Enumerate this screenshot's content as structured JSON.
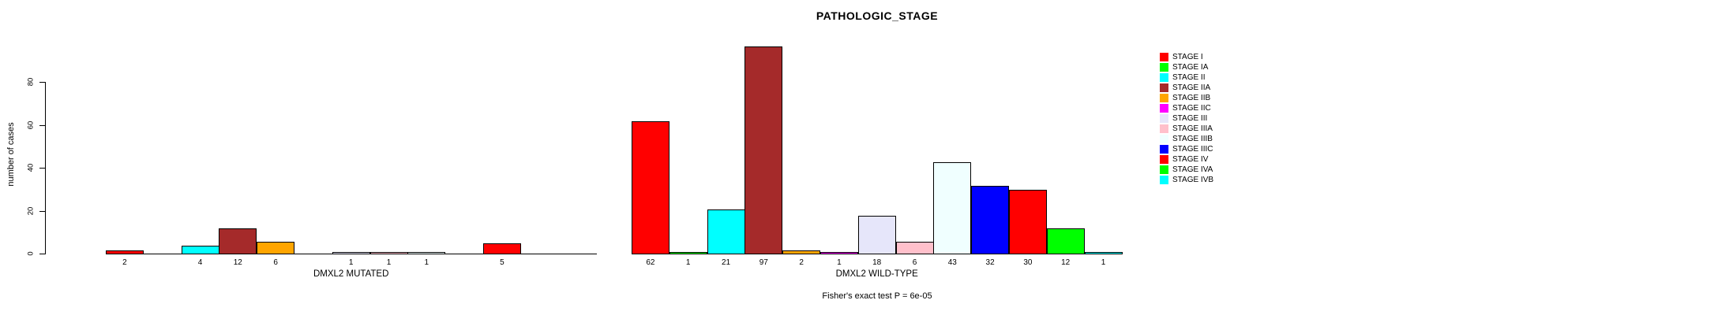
{
  "title": "PATHOLOGIC_STAGE",
  "footer": "Fisher's exact test P = 6e-05",
  "chart_data": {
    "type": "bar",
    "title": "PATHOLOGIC_STAGE",
    "ylabel": "number of cases",
    "yticks": [
      0,
      20,
      40,
      60,
      80
    ],
    "ylim": [
      0,
      80
    ],
    "grid": false,
    "legend_position": "right",
    "categories": [
      "STAGE I",
      "STAGE IA",
      "STAGE II",
      "STAGE IIA",
      "STAGE IIB",
      "STAGE IIC",
      "STAGE III",
      "STAGE IIIA",
      "STAGE IIIB",
      "STAGE IIIC",
      "STAGE IV",
      "STAGE IVA",
      "STAGE IVB"
    ],
    "colors": [
      "#FF0000",
      "#00FF00",
      "#00FFFF",
      "#A52A2A",
      "#FFA500",
      "#FF00FF",
      "#E6E6FA",
      "#FFC0CB",
      "#F0FFFF",
      "#0000FF",
      "#FF0000",
      "#00FF00",
      "#00FFFF"
    ],
    "series": [
      {
        "name": "DMXL2 MUTATED",
        "values": [
          2,
          0,
          4,
          12,
          6,
          0,
          1,
          1,
          1,
          0,
          5,
          0,
          0
        ]
      },
      {
        "name": "DMXL2 WILD-TYPE",
        "values": [
          62,
          1,
          21,
          97,
          2,
          1,
          18,
          6,
          43,
          32,
          30,
          12,
          1
        ]
      }
    ],
    "annotation": "Fisher's exact test P = 6e-05"
  }
}
